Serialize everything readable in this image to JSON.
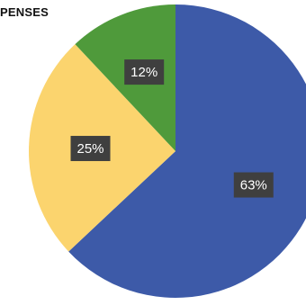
{
  "chart_data": {
    "type": "pie",
    "title": "PENSES",
    "slices": [
      {
        "label": "63%",
        "value": 63,
        "color": "#3d5aa8"
      },
      {
        "label": "25%",
        "value": 25,
        "color": "#fbd46e"
      },
      {
        "label": "12%",
        "value": 12,
        "color": "#4f9a3b"
      }
    ],
    "start_angle_deg": 0,
    "direction": "clockwise"
  }
}
